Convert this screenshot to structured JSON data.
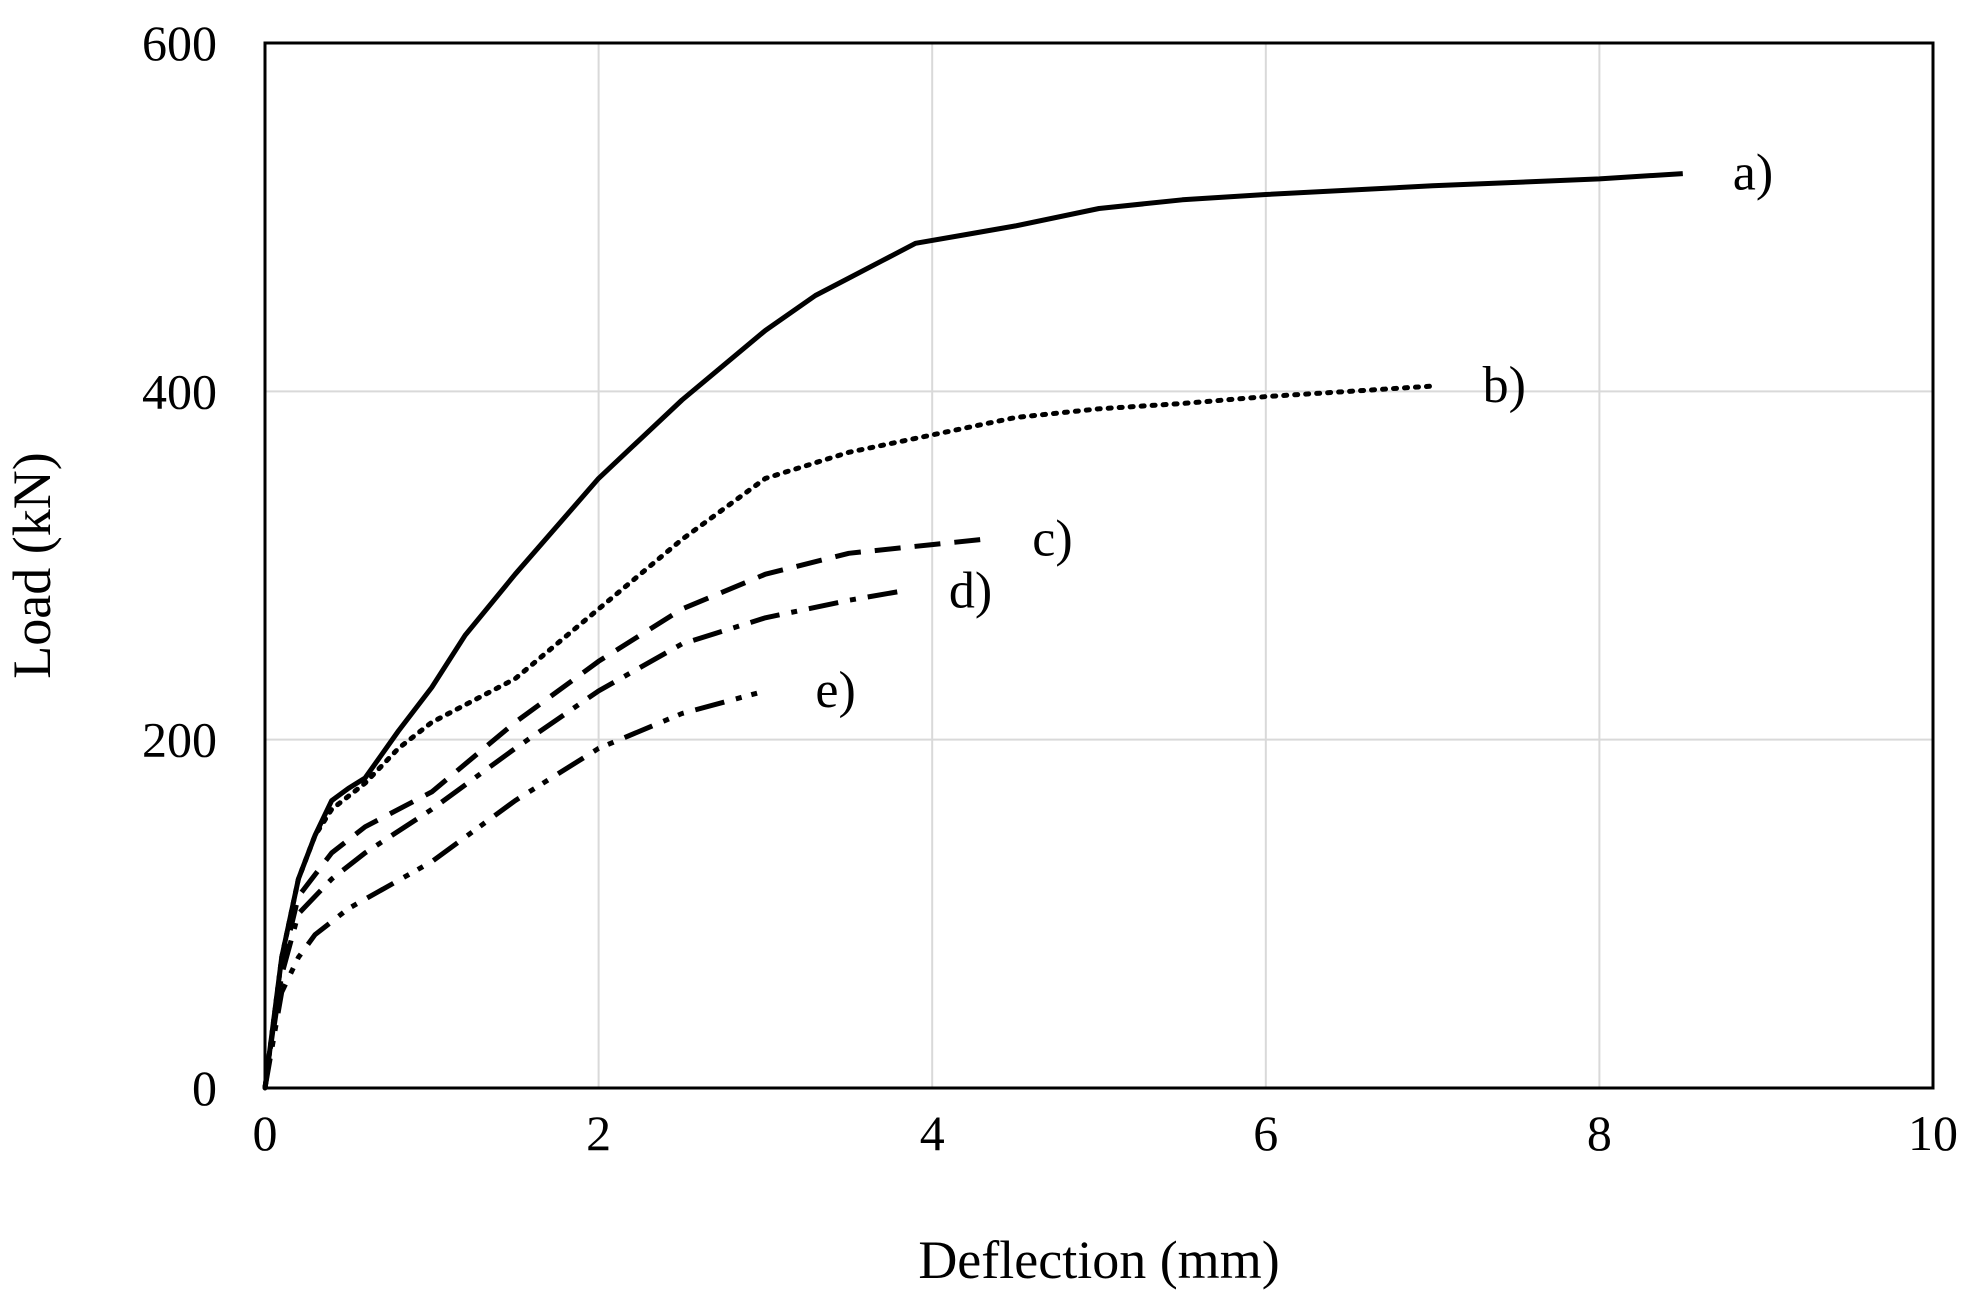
{
  "chart_data": {
    "type": "line",
    "title": "",
    "xlabel": "Deflection (mm)",
    "ylabel": "Load (kN)",
    "xlim": [
      0,
      10
    ],
    "ylim": [
      0,
      600
    ],
    "x_ticks": [
      "0",
      "2",
      "4",
      "6",
      "8",
      "10"
    ],
    "y_ticks": [
      "0",
      "200",
      "400",
      "600"
    ],
    "grid": true,
    "series": [
      {
        "name": "a)",
        "style": "solid",
        "x": [
          0,
          0.1,
          0.2,
          0.3,
          0.4,
          0.5,
          0.6,
          0.8,
          1.0,
          1.2,
          1.5,
          2.0,
          2.5,
          3.0,
          3.3,
          3.5,
          3.7,
          3.9,
          4.2,
          4.5,
          5.0,
          5.5,
          6.0,
          7.0,
          8.0,
          8.5
        ],
        "y": [
          0,
          75,
          120,
          145,
          165,
          172,
          178,
          205,
          230,
          260,
          295,
          350,
          395,
          435,
          455,
          465,
          475,
          485,
          490,
          495,
          505,
          510,
          513,
          518,
          522,
          525
        ]
      },
      {
        "name": "b)",
        "style": "dotted",
        "x": [
          0,
          0.1,
          0.2,
          0.3,
          0.4,
          0.6,
          0.8,
          1.0,
          1.5,
          2.0,
          2.5,
          3.0,
          3.5,
          4.0,
          4.5,
          5.0,
          5.5,
          6.0,
          7.0
        ],
        "y": [
          0,
          75,
          120,
          145,
          160,
          175,
          195,
          210,
          235,
          275,
          315,
          350,
          365,
          375,
          385,
          390,
          393,
          397,
          403
        ]
      },
      {
        "name": "c)",
        "style": "dashed",
        "x": [
          0,
          0.1,
          0.2,
          0.4,
          0.6,
          1.0,
          1.5,
          2.0,
          2.5,
          3.0,
          3.5,
          4.0,
          4.3
        ],
        "y": [
          0,
          70,
          110,
          135,
          150,
          170,
          210,
          245,
          275,
          295,
          307,
          312,
          315
        ]
      },
      {
        "name": "d)",
        "style": "dash-dot",
        "x": [
          0,
          0.1,
          0.2,
          0.4,
          0.6,
          1.0,
          1.5,
          2.0,
          2.5,
          3.0,
          3.5,
          3.8
        ],
        "y": [
          0,
          65,
          100,
          120,
          135,
          160,
          195,
          228,
          255,
          270,
          280,
          285
        ]
      },
      {
        "name": "e)",
        "style": "dash-dot-dot",
        "x": [
          0,
          0.1,
          0.2,
          0.3,
          0.5,
          1.0,
          1.5,
          2.0,
          2.5,
          3.0
        ],
        "y": [
          0,
          55,
          75,
          88,
          103,
          130,
          165,
          195,
          215,
          228
        ]
      }
    ]
  }
}
